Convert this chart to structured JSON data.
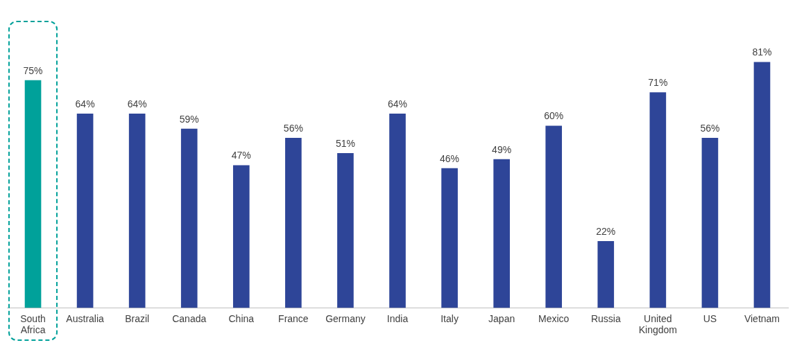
{
  "chart_data": {
    "type": "bar",
    "categories": [
      "South Africa",
      "Australia",
      "Brazil",
      "Canada",
      "China",
      "France",
      "Germany",
      "India",
      "Italy",
      "Japan",
      "Mexico",
      "Russia",
      "United Kingdom",
      "US",
      "Vietnam"
    ],
    "values": [
      75,
      64,
      64,
      59,
      47,
      56,
      51,
      64,
      46,
      49,
      60,
      22,
      71,
      56,
      81
    ],
    "colors": [
      "#00a19a",
      "#2e4598",
      "#2e4598",
      "#2e4598",
      "#2e4598",
      "#2e4598",
      "#2e4598",
      "#2e4598",
      "#2e4598",
      "#2e4598",
      "#2e4598",
      "#2e4598",
      "#2e4598",
      "#2e4598",
      "#2e4598"
    ],
    "value_labels": [
      "75%",
      "64%",
      "64%",
      "59%",
      "47%",
      "56%",
      "51%",
      "64%",
      "46%",
      "49%",
      "60%",
      "22%",
      "71%",
      "56%",
      "81%"
    ],
    "grid": false,
    "legend": false
  }
}
